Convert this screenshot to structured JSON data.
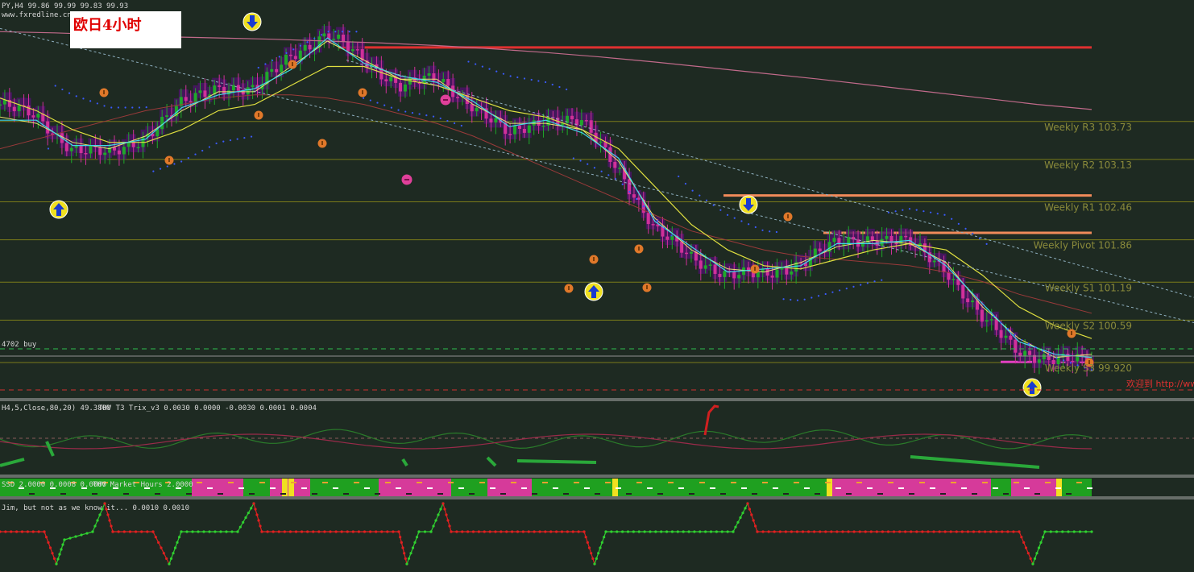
{
  "header": {
    "symbol_line": "PY,H4  99.86 99.99 99.83 99.93",
    "site": "www.fxredline.cn"
  },
  "badge": "欧日4小时",
  "trade_label": "4702 buy",
  "watermark": "欢迎到 http://ww",
  "indicators": {
    "osc_label": "H4,5,Close,80,20) 49.3800",
    "trix_label": "THV T3 Trix_v3  0.0030 0.0000 -0.0030 0.0001 0.0004",
    "ssd_label": "SSD 2.0000 0.0008 0.0000",
    "market_hours_label": "THV Market Hours 2.0000",
    "jim_label": "Jim, but not as we know it... 0.0010 0.0010"
  },
  "chart_data": {
    "type": "line",
    "title": "",
    "pivot_levels": [
      {
        "label": "Weekly R3 103.73",
        "value": 103.73
      },
      {
        "label": "Weekly R2 103.13",
        "value": 103.13
      },
      {
        "label": "Weekly R1 102.46",
        "value": 102.46
      },
      {
        "label": "Weekly Pivot 101.86",
        "value": 101.86
      },
      {
        "label": "Weekly S1 101.19",
        "value": 101.19
      },
      {
        "label": "Weekly S2 100.59",
        "value": 100.59
      },
      {
        "label": "Weekly S3 99.920",
        "value": 99.92
      }
    ],
    "ylim": [
      99.36,
      105.65
    ],
    "close_trace": [
      104.0,
      103.8,
      103.3,
      103.2,
      103.5,
      104.0,
      104.3,
      104.2,
      104.8,
      105.1,
      104.7,
      104.3,
      104.4,
      104.0,
      103.5,
      103.8,
      103.7,
      103.0,
      102.0,
      101.6,
      101.3,
      101.3,
      101.5,
      101.8,
      101.9,
      101.8,
      101.4,
      100.6,
      100.1,
      99.96,
      99.93
    ],
    "ema_fast": [
      103.8,
      103.7,
      103.4,
      103.3,
      103.5,
      103.9,
      104.2,
      104.2,
      104.6,
      105.0,
      104.7,
      104.4,
      104.4,
      104.0,
      103.7,
      103.7,
      103.6,
      103.1,
      102.2,
      101.7,
      101.4,
      101.35,
      101.5,
      101.75,
      101.85,
      101.8,
      101.5,
      100.8,
      100.3,
      100.0,
      100.05
    ],
    "ema_slow": [
      104.1,
      103.9,
      103.6,
      103.4,
      103.4,
      103.6,
      103.9,
      104.0,
      104.3,
      104.6,
      104.6,
      104.4,
      104.3,
      104.1,
      103.9,
      103.8,
      103.6,
      103.3,
      102.7,
      102.1,
      101.7,
      101.45,
      101.4,
      101.55,
      101.7,
      101.8,
      101.7,
      101.3,
      100.8,
      100.5,
      100.3
    ],
    "ma_long": [
      103.3,
      103.45,
      103.6,
      103.75,
      103.9,
      104.0,
      104.1,
      104.15,
      104.15,
      104.1,
      104.0,
      103.85,
      103.7,
      103.5,
      103.25,
      103.0,
      102.75,
      102.5,
      102.25,
      102.0,
      101.85,
      101.7,
      101.6,
      101.55,
      101.5,
      101.45,
      101.35,
      101.2,
      101.0,
      100.85,
      100.7
    ],
    "ma_very_long": [
      105.15,
      105.13,
      105.1,
      105.07,
      105.05,
      105.03,
      105.0,
      104.97,
      104.93,
      104.88,
      104.82,
      104.75,
      104.67,
      104.58,
      104.49,
      104.4,
      104.3,
      104.2,
      104.1,
      104.0,
      103.92
    ],
    "horizontal_lines": [
      {
        "value": 104.9,
        "color": "#e03030"
      },
      {
        "value": 102.56,
        "color": "#f08a5a"
      },
      {
        "value": 101.97,
        "color": "#f08a5a"
      },
      {
        "value": 99.93,
        "color": "#e040c0"
      }
    ]
  }
}
